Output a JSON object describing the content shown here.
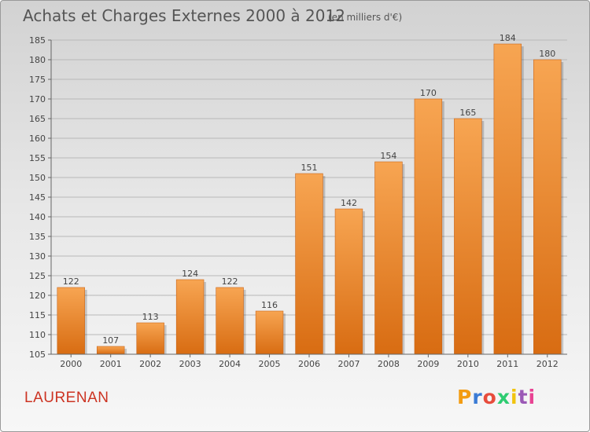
{
  "chart_data": {
    "type": "bar",
    "title": "Achats et Charges Externes 2000 à 2012",
    "subtitle": "(en milliers d'€)",
    "categories": [
      "2000",
      "2001",
      "2002",
      "2003",
      "2004",
      "2005",
      "2006",
      "2007",
      "2008",
      "2009",
      "2010",
      "2011",
      "2012"
    ],
    "values": [
      122,
      107,
      113,
      124,
      122,
      116,
      151,
      142,
      154,
      170,
      165,
      184,
      180
    ],
    "ylim": [
      105,
      185
    ],
    "yticks": [
      105,
      110,
      115,
      120,
      125,
      130,
      135,
      140,
      145,
      150,
      155,
      160,
      165,
      170,
      175,
      180,
      185
    ],
    "grid": true,
    "xlabel": "",
    "ylabel": "",
    "bar_color": "#f08e30"
  },
  "place_name": "LAURENAN",
  "logo": {
    "text": "Proxiti",
    "letters": [
      "P",
      "r",
      "o",
      "x",
      "i",
      "t",
      "i"
    ],
    "colors": [
      "#f39c12",
      "#3a7bd5",
      "#e74c3c",
      "#2ecc71",
      "#f1c40f",
      "#9b59b6",
      "#e84393"
    ]
  }
}
